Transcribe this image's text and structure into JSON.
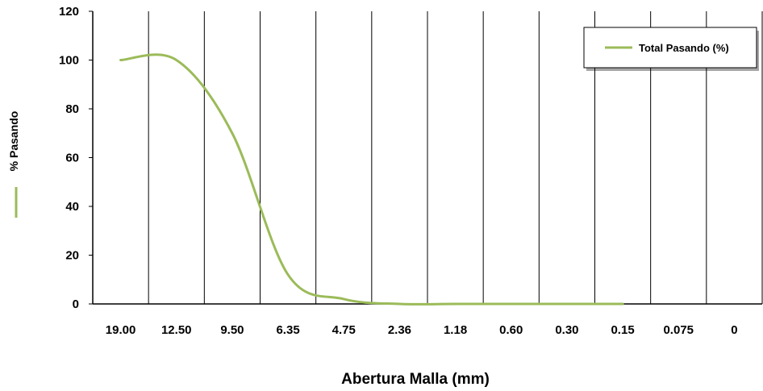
{
  "chart_data": {
    "type": "line",
    "xlabel": "Abertura Malla (mm)",
    "ylabel": "% Pasando",
    "categories": [
      "19.00",
      "12.50",
      "9.50",
      "6.35",
      "4.75",
      "2.36",
      "1.18",
      "0.60",
      "0.30",
      "0.15",
      "0.075",
      "0"
    ],
    "ylim": [
      0,
      120
    ],
    "yticks": [
      0,
      20,
      40,
      60,
      80,
      100,
      120
    ],
    "grid": "vertical",
    "legend_position": "top-right",
    "series": [
      {
        "name": "Total Pasando (%)",
        "color": "#9bbb59",
        "points": [
          {
            "x": "19.00",
            "y": 100
          },
          {
            "x": "12.50",
            "y": 100
          },
          {
            "x": "9.50",
            "y": 70
          },
          {
            "x": "6.35",
            "y": 12
          },
          {
            "x": "4.75",
            "y": 2
          },
          {
            "x": "2.36",
            "y": 0
          },
          {
            "x": "1.18",
            "y": 0
          },
          {
            "x": "0.60",
            "y": 0
          },
          {
            "x": "0.30",
            "y": 0
          },
          {
            "x": "0.15",
            "y": 0
          }
        ]
      }
    ]
  }
}
